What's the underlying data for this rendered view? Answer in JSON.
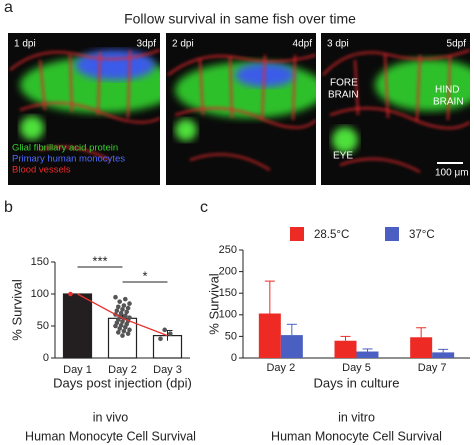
{
  "panel_a": {
    "letter": "a",
    "title": "Follow survival in same fish over time",
    "images": [
      {
        "dpi": "1 dpi",
        "dpf": "3dpf"
      },
      {
        "dpi": "2 dpi",
        "dpf": "4dpf"
      },
      {
        "dpi": "3 dpi",
        "dpf": "5dpf"
      }
    ],
    "legend": [
      "Glial fibrillary acid protein",
      "Primary human monocytes",
      "Blood vessels"
    ],
    "fore_brain": [
      "FORE",
      "BRAIN"
    ],
    "hind_brain": [
      "HIND",
      "BRAIN"
    ],
    "eye": "EYE",
    "scale_bar": "100 μm"
  },
  "chart_data": [
    {
      "type": "bar",
      "letter": "b",
      "ylabel": "% Survival",
      "xlabel": "Days post injection (dpi)",
      "categories": [
        "Day 1",
        "Day 2",
        "Day 3"
      ],
      "values": [
        100,
        62,
        35
      ],
      "errors": [
        0,
        5,
        8
      ],
      "colors": [
        "#231f20",
        "#ffffff",
        "#ffffff"
      ],
      "line_color": "#e8312f",
      "points": [
        [
          100
        ],
        [
          95,
          92,
          88,
          85,
          82,
          80,
          78,
          76,
          74,
          72,
          70,
          68,
          66,
          65,
          63,
          62,
          60,
          58,
          57,
          55,
          53,
          51,
          50,
          48,
          46,
          44,
          42,
          40,
          38,
          35
        ],
        [
          30,
          38,
          44
        ]
      ],
      "annotations": [
        "***",
        "*"
      ],
      "ylim": [
        0,
        150
      ],
      "yticks": [
        0,
        50,
        100,
        150
      ],
      "caption": [
        "in vivo",
        "Human Monocyte Cell Survival"
      ]
    },
    {
      "type": "grouped_bar",
      "letter": "c",
      "ylabel": "% Survival",
      "xlabel": "Days in culture",
      "categories": [
        "Day 2",
        "Day 5",
        "Day 7"
      ],
      "series": [
        {
          "name": "28.5°C",
          "color": "#ee2a24",
          "values": [
            103,
            40,
            48
          ],
          "errors": [
            75,
            10,
            22
          ]
        },
        {
          "name": "37°C",
          "color": "#4a5fc1",
          "values": [
            53,
            15,
            13
          ],
          "errors": [
            25,
            6,
            7
          ]
        }
      ],
      "ylim": [
        0,
        250
      ],
      "yticks": [
        0,
        50,
        100,
        150,
        200,
        250
      ],
      "caption": [
        "in vitro",
        "Human Monocyte Cell Survival"
      ]
    }
  ]
}
